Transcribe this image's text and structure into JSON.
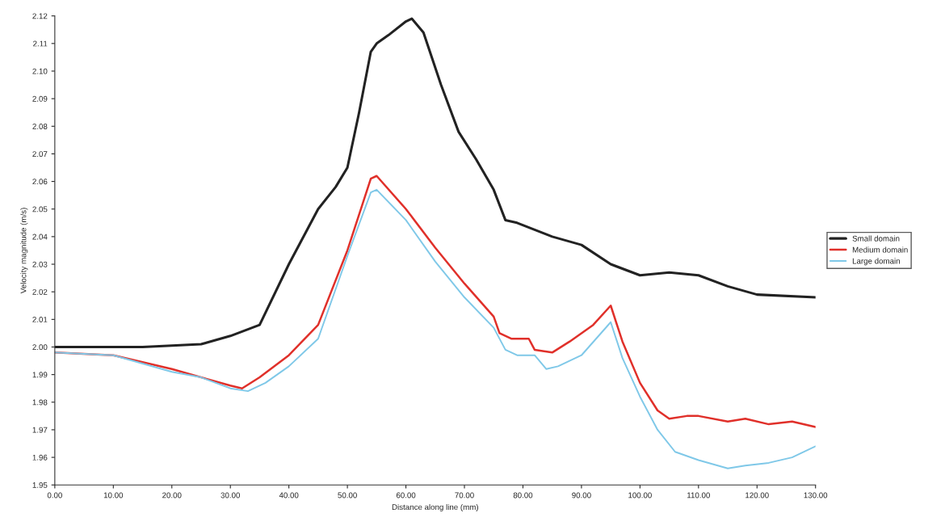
{
  "chart_data": {
    "type": "line",
    "xlabel": "Distance along line (mm)",
    "ylabel": "Velocity magnitude (m/s)",
    "xlim": [
      0,
      130
    ],
    "ylim": [
      1.95,
      2.12
    ],
    "xticks": [
      {
        "value": 0,
        "label": "0.00"
      },
      {
        "value": 10,
        "label": "10.00"
      },
      {
        "value": 20,
        "label": "20.00"
      },
      {
        "value": 30,
        "label": "30.00"
      },
      {
        "value": 40,
        "label": "40.00"
      },
      {
        "value": 50,
        "label": "50.00"
      },
      {
        "value": 60,
        "label": "60.00"
      },
      {
        "value": 70,
        "label": "70.00"
      },
      {
        "value": 80,
        "label": "80.00"
      },
      {
        "value": 90,
        "label": "90.00"
      },
      {
        "value": 100,
        "label": "100.00"
      },
      {
        "value": 110,
        "label": "110.00"
      },
      {
        "value": 120,
        "label": "120.00"
      },
      {
        "value": 130,
        "label": "130.00"
      }
    ],
    "yticks": [
      {
        "value": 1.95,
        "label": "1.95"
      },
      {
        "value": 1.96,
        "label": "1.96"
      },
      {
        "value": 1.97,
        "label": "1.97"
      },
      {
        "value": 1.98,
        "label": "1.98"
      },
      {
        "value": 1.99,
        "label": "1.99"
      },
      {
        "value": 2.0,
        "label": "2.00"
      },
      {
        "value": 2.01,
        "label": "2.01"
      },
      {
        "value": 2.02,
        "label": "2.02"
      },
      {
        "value": 2.03,
        "label": "2.03"
      },
      {
        "value": 2.04,
        "label": "2.04"
      },
      {
        "value": 2.05,
        "label": "2.05"
      },
      {
        "value": 2.06,
        "label": "2.06"
      },
      {
        "value": 2.07,
        "label": "2.07"
      },
      {
        "value": 2.08,
        "label": "2.08"
      },
      {
        "value": 2.09,
        "label": "2.09"
      },
      {
        "value": 2.1,
        "label": "2.10"
      },
      {
        "value": 2.11,
        "label": "2.11"
      },
      {
        "value": 2.12,
        "label": "2.12"
      }
    ],
    "legend": "right",
    "grid": false,
    "marker": "none",
    "line_style": "solid",
    "series": [
      {
        "name": "Small domain",
        "color": "#222222",
        "x": [
          0,
          15,
          25,
          30,
          35,
          40,
          45,
          48,
          50,
          52,
          54,
          55,
          57,
          60,
          61,
          63,
          66,
          69,
          72,
          75,
          77,
          79,
          85,
          90,
          95,
          100,
          105,
          110,
          115,
          120,
          130
        ],
        "values": [
          2.0,
          2.0,
          2.001,
          2.004,
          2.008,
          2.03,
          2.05,
          2.058,
          2.065,
          2.085,
          2.107,
          2.11,
          2.113,
          2.118,
          2.119,
          2.114,
          2.095,
          2.078,
          2.068,
          2.057,
          2.046,
          2.045,
          2.04,
          2.037,
          2.03,
          2.026,
          2.027,
          2.026,
          2.022,
          2.019,
          2.018
        ]
      },
      {
        "name": "Medium domain",
        "color": "#e0302a",
        "x": [
          0,
          10,
          20,
          30,
          32,
          35,
          40,
          45,
          50,
          54,
          55,
          60,
          65,
          70,
          75,
          76,
          78,
          81,
          82,
          85,
          88,
          92,
          95,
          97,
          100,
          103,
          105,
          108,
          110,
          115,
          118,
          122,
          126,
          130
        ],
        "values": [
          1.998,
          1.997,
          1.992,
          1.986,
          1.985,
          1.989,
          1.997,
          2.008,
          2.035,
          2.061,
          2.062,
          2.05,
          2.036,
          2.023,
          2.011,
          2.005,
          2.003,
          2.003,
          1.999,
          1.998,
          2.002,
          2.008,
          2.015,
          2.002,
          1.987,
          1.977,
          1.974,
          1.975,
          1.975,
          1.973,
          1.974,
          1.972,
          1.973,
          1.971
        ]
      },
      {
        "name": "Large domain",
        "color": "#7fc8e8",
        "x": [
          0,
          10,
          20,
          25,
          30,
          33,
          36,
          40,
          45,
          50,
          54,
          55,
          60,
          65,
          70,
          75,
          77,
          79,
          82,
          84,
          86,
          90,
          95,
          97,
          100,
          103,
          106,
          110,
          115,
          118,
          122,
          126,
          130
        ],
        "values": [
          1.998,
          1.997,
          1.991,
          1.989,
          1.985,
          1.984,
          1.987,
          1.993,
          2.003,
          2.033,
          2.056,
          2.057,
          2.046,
          2.031,
          2.018,
          2.007,
          1.999,
          1.997,
          1.997,
          1.992,
          1.993,
          1.997,
          2.009,
          1.996,
          1.982,
          1.97,
          1.962,
          1.959,
          1.956,
          1.957,
          1.958,
          1.96,
          1.964
        ]
      }
    ]
  }
}
